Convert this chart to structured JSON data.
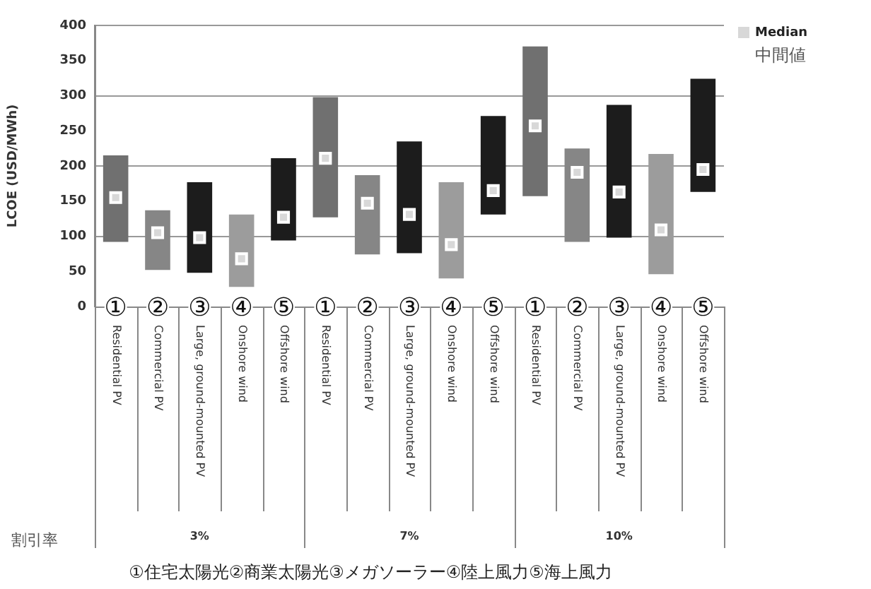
{
  "chart_data": {
    "type": "bar",
    "ylabel": "LCOE (USD/MWh)",
    "legend": "top right",
    "grid": "y",
    "categories": [
      "①Residential PV",
      "②Commercial PV",
      "③Large, ground-mounted PV",
      "④Onshore wind",
      "⑤Offshore wind",
      "①Residential PV",
      "②Commercial PV",
      "③Large, ground-mounted PV",
      "④Onshore wind",
      "⑤Offshore wind",
      "①Residential PV",
      "②Commercial PV",
      "③Large, ground-mounted PV",
      "④Onshore wind",
      "⑤Offshore wind"
    ],
    "ylim": [
      0,
      400
    ],
    "yticks": [
      0,
      50,
      100,
      150,
      200,
      250,
      300,
      350,
      400
    ],
    "series": [
      {
        "type": "bar",
        "colors": [
          "#707070",
          "#868686",
          "#1c1c1c",
          "#9c9c9c",
          "#1c1c1c",
          "#707070",
          "#868686",
          "#1c1c1c",
          "#9c9c9c",
          "#1c1c1c",
          "#707070",
          "#868686",
          "#1c1c1c",
          "#9c9c9c",
          "#1c1c1c"
        ],
        "base": [
          92,
          52,
          48,
          28,
          94,
          127,
          74,
          76,
          40,
          131,
          157,
          92,
          98,
          46,
          163
        ],
        "values": [
          123,
          85,
          129,
          103,
          117,
          171,
          113,
          159,
          137,
          140,
          213,
          133,
          189,
          171,
          161
        ]
      },
      {
        "type": "scatter",
        "name": "Median",
        "color": "#d8d8d8",
        "marker": "square",
        "values": [
          155,
          105,
          98,
          68,
          127,
          211,
          147,
          131,
          88,
          165,
          257,
          191,
          163,
          109,
          195
        ]
      }
    ],
    "annotations": [
      "中間値",
      "割引率",
      "3%",
      "7%",
      "10%",
      "①住宅太陽光②商業太陽光③メガソーラー④陸上風力⑤海上風力"
    ]
  }
}
